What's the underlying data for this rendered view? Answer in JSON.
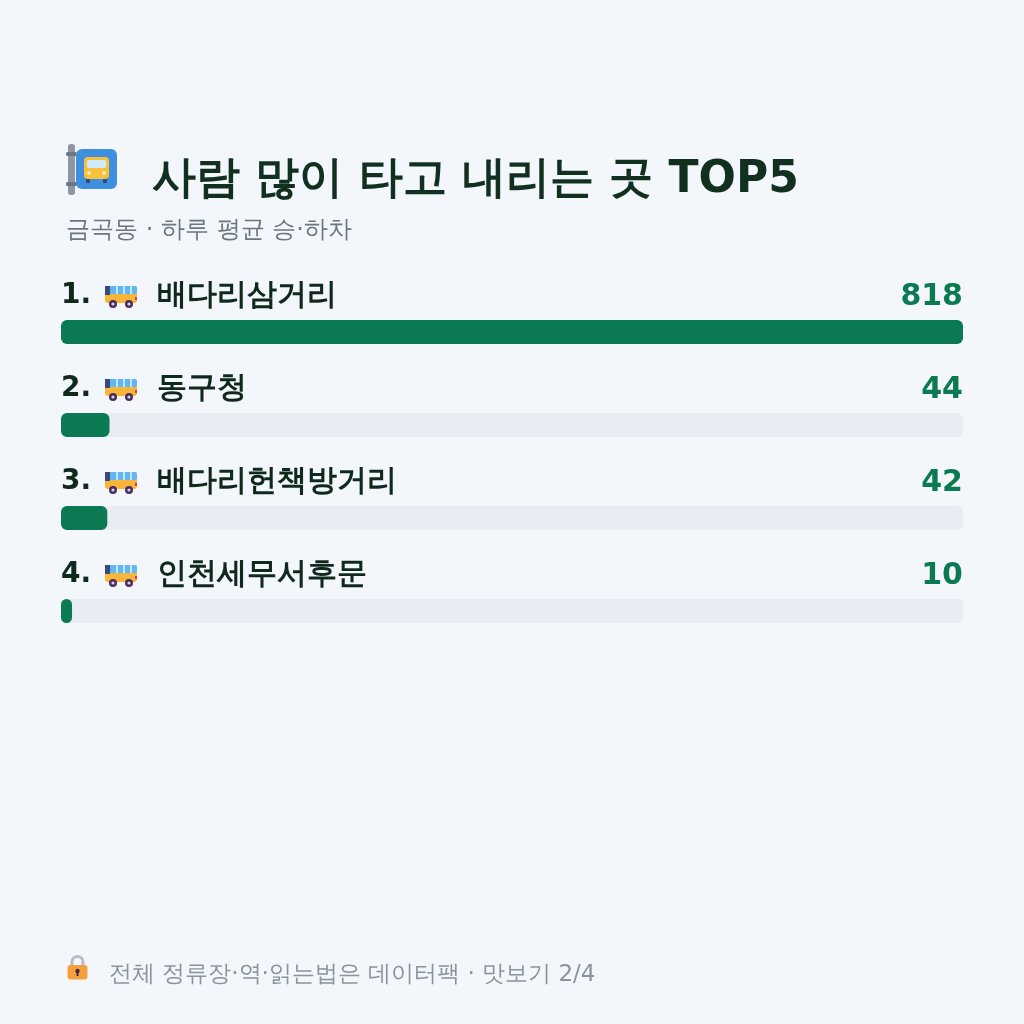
{
  "chart_data": {
    "type": "bar",
    "orientation": "horizontal",
    "title": "사람 많이 타고 내리는 곳 TOP5",
    "subtitle": "금곡동 · 하루 평균 승·하차",
    "categories": [
      "1. 배다리삼거리",
      "2. 동구청",
      "3. 배다리헌책방거리",
      "4. 인천세무서후문"
    ],
    "values": [
      818,
      44,
      42,
      10
    ],
    "color": "#0b7a52",
    "xlim": [
      0,
      818
    ],
    "data_labels": true,
    "tick_labels": "y",
    "grid": false,
    "annotations": [
      "전체 정류장·역·읽는법은 데이터팩 · 맛보기 2/4"
    ]
  }
}
